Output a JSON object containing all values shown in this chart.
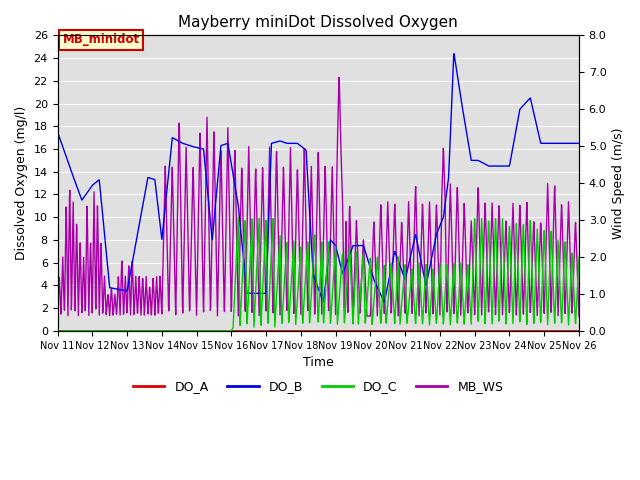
{
  "title": "Mayberry miniDot Dissolved Oxygen",
  "ylabel_left": "Dissolved Oxygen (mg/l)",
  "ylabel_right": "Wind Speed (m/s)",
  "xlabel": "Time",
  "ylim_left": [
    0,
    26
  ],
  "ylim_right": [
    0.0,
    8.0
  ],
  "yticks_left": [
    0,
    2,
    4,
    6,
    8,
    10,
    12,
    14,
    16,
    18,
    20,
    22,
    24,
    26
  ],
  "yticks_right": [
    0.0,
    1.0,
    2.0,
    3.0,
    4.0,
    5.0,
    6.0,
    7.0,
    8.0
  ],
  "xtick_labels": [
    "Nov 11",
    "Nov 12",
    "Nov 13",
    "Nov 14",
    "Nov 15",
    "Nov 16",
    "Nov 17",
    "Nov 18",
    "Nov 19",
    "Nov 20",
    "Nov 21",
    "Nov 22",
    "Nov 23",
    "Nov 24",
    "Nov 25",
    "Nov 26"
  ],
  "background_color": "#e0e0e0",
  "annotation_text": "MB_minidot",
  "annotation_bg": "#ffffcc",
  "annotation_border": "#cc0000",
  "legend_entries": [
    "DO_A",
    "DO_B",
    "DO_C",
    "MB_WS"
  ],
  "line_colors": {
    "DO_A": "#dd0000",
    "DO_B": "#0000ee",
    "DO_C": "#00cc00",
    "MB_WS": "#aa00aa"
  },
  "ws_scale": 3.25
}
